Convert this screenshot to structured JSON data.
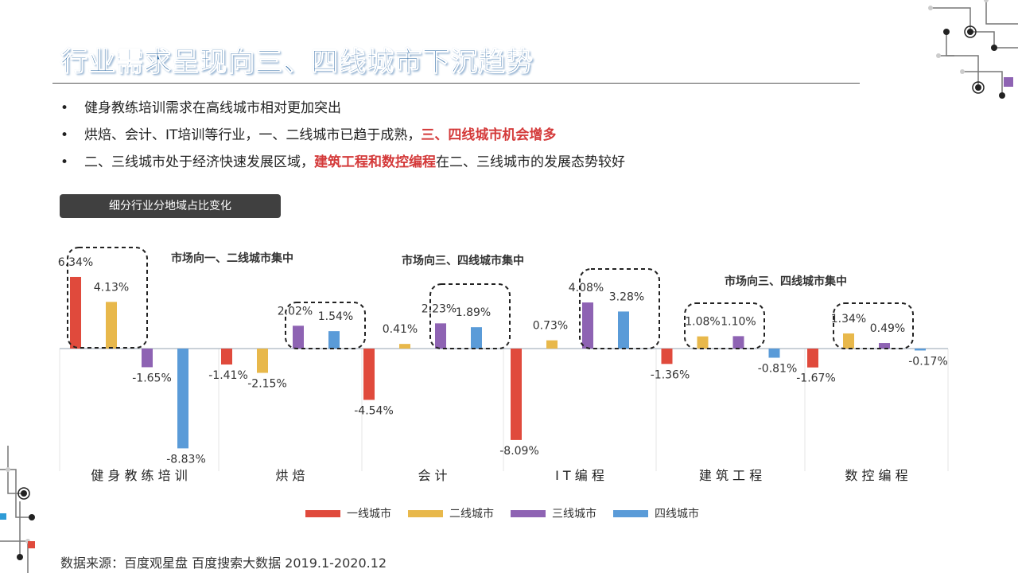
{
  "title": "行业需求呈现向三、四线城市下沉趋势",
  "bullets": [
    {
      "dot": "•",
      "text": "健身教练培训需求在高线城市相对更加突出",
      "highlight": "",
      "after": ""
    },
    {
      "dot": "•",
      "text": "烘焙、会计、IT培训等行业，一、二线城市已趋于成熟，",
      "highlight": "三、四线城市机会增多",
      "after": ""
    },
    {
      "dot": "•",
      "text": "二、三线城市处于经济快速发展区域，",
      "highlight": "建筑工程和数控编程",
      "after": "在二、三线城市的发展态势较好"
    }
  ],
  "subtitle_badge": "细分行业分地域占比变化",
  "source": "数据来源：百度观星盘 百度搜索大数据 2019.1-2020.12",
  "colors": {
    "tier1": "#e04a3c",
    "tier2": "#e8b84b",
    "tier3": "#8e63b3",
    "tier4": "#5a9bd8",
    "title": "#1f5f9e",
    "highlight": "#d43a3a"
  },
  "chart_data": {
    "type": "bar",
    "categories": [
      "健身教练培训",
      "烘焙",
      "会计",
      "IT编程",
      "建筑工程",
      "数控编程"
    ],
    "category_labels": [
      "健 身 教 练 培 训",
      "烘 焙",
      "会 计",
      "I T 编 程",
      "建 筑 工 程",
      "数 控 编 程"
    ],
    "series": [
      {
        "name": "一线城市",
        "color": "#e04a3c",
        "values": [
          6.34,
          -1.41,
          -4.54,
          -8.09,
          -1.36,
          -1.67
        ]
      },
      {
        "name": "二线城市",
        "color": "#e8b84b",
        "values": [
          4.13,
          -2.15,
          0.41,
          0.73,
          1.08,
          1.34
        ]
      },
      {
        "name": "三线城市",
        "color": "#8e63b3",
        "values": [
          -1.65,
          2.02,
          2.23,
          4.08,
          1.1,
          0.49
        ]
      },
      {
        "name": "四线城市",
        "color": "#5a9bd8",
        "values": [
          -8.83,
          1.54,
          1.89,
          3.28,
          -0.81,
          -0.17
        ]
      }
    ],
    "value_labels": [
      [
        "6.34%",
        "-1.41%",
        "-4.54%",
        "-8.09%",
        "-1.36%",
        "-1.67%"
      ],
      [
        "4.13%",
        "-2.15%",
        "0.41%",
        "0.73%",
        "1.08%",
        "1.34%"
      ],
      [
        "-1.65%",
        "2.02%",
        "2.23%",
        "4.08%",
        "1.10%",
        "0.49%"
      ],
      [
        "-8.83%",
        "1.54%",
        "1.89%",
        "3.28%",
        "-0.81%",
        "-0.17%"
      ]
    ],
    "ylim": [
      -9,
      7
    ],
    "legend_position": "bottom",
    "annotations": [
      "市场向一、二线城市集中",
      "市场向三、四线城市集中",
      "市场向三、四线城市集中"
    ],
    "title": "",
    "xlabel": "",
    "ylabel": ""
  }
}
